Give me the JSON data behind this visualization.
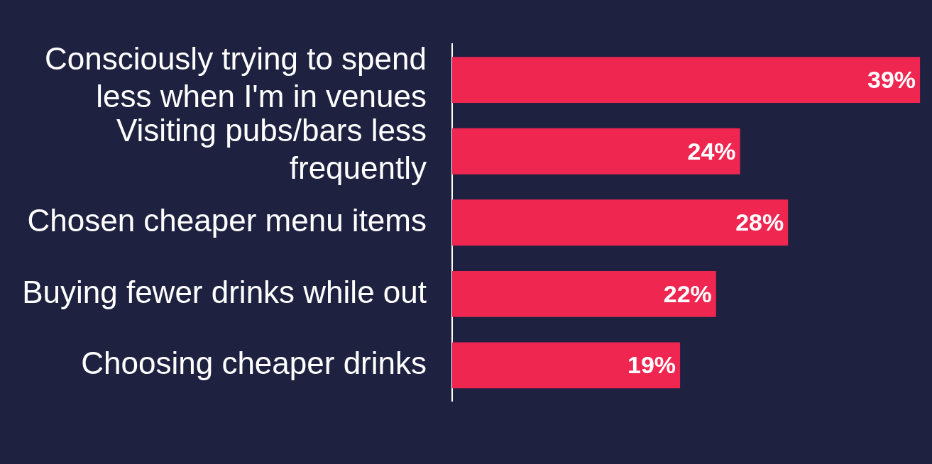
{
  "chart_data": {
    "type": "bar",
    "orientation": "horizontal",
    "categories": [
      "Consciously trying to spend less when I'm in venues",
      "Visiting pubs/bars less frequently",
      "Chosen cheaper menu items",
      "Buying fewer drinks while out",
      "Choosing cheaper drinks"
    ],
    "values": [
      39,
      24,
      28,
      22,
      19
    ],
    "color": "#ee2650",
    "data_labels": true,
    "value_labels": [
      "39%",
      "24%",
      "28%",
      "22%",
      "19%"
    ],
    "grid": false,
    "legend": false
  }
}
